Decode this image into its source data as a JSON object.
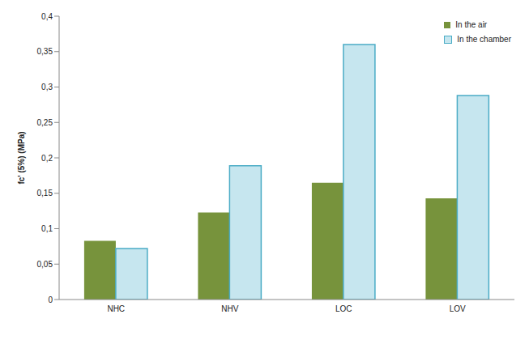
{
  "chart_data": {
    "type": "bar",
    "y_label": "fc' (5%) (MPa)",
    "categories": [
      "NHC",
      "NHV",
      "LOC",
      "LOV"
    ],
    "series": [
      {
        "name": "In the air",
        "color": "#77933c",
        "values": [
          0.083,
          0.123,
          0.165,
          0.143
        ]
      },
      {
        "name": "In the chamber",
        "color": "#c6e6ef",
        "values": [
          0.072,
          0.189,
          0.36,
          0.288
        ]
      }
    ],
    "ylim": [
      0,
      0.4
    ],
    "yticks": [
      0,
      {
        "value": 0.05,
        "label": "0,05"
      },
      {
        "value": 0.1,
        "label": "0,1"
      },
      {
        "value": 0.15,
        "label": "0,15"
      },
      {
        "value": 0.2,
        "label": "0,2"
      },
      {
        "value": 0.25,
        "label": "0,25"
      },
      {
        "value": 0.3,
        "label": "0,3"
      },
      {
        "value": 0.35,
        "label": "0,35"
      },
      {
        "value": 0.4,
        "label": "0,4"
      }
    ],
    "grid": false,
    "legend": "top-right"
  }
}
